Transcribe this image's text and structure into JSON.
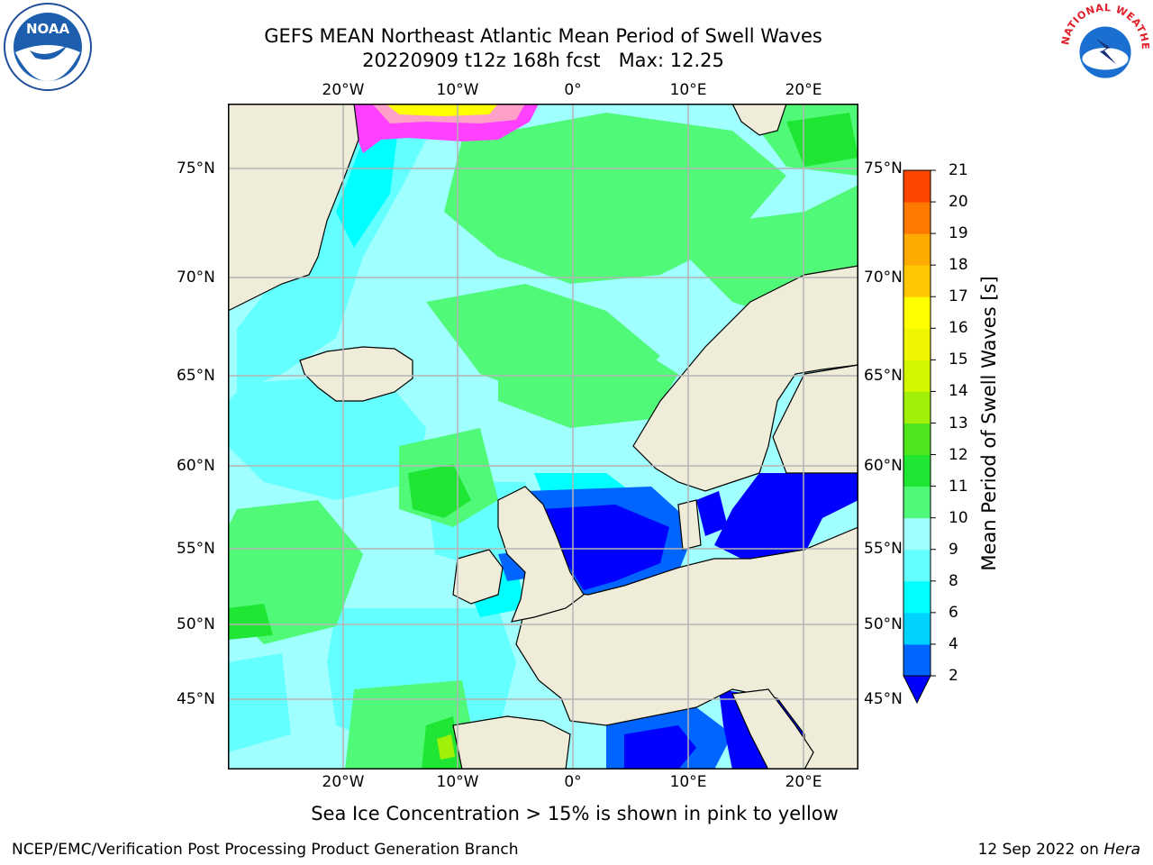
{
  "header": {
    "title_line1": "GEFS MEAN Northeast Atlantic Mean Period of Swell Waves",
    "title_line2": "20220909 t12z 168h fcst   Max: 12.25"
  },
  "logos": {
    "left": "noaa-logo",
    "left_text": "NOAA",
    "right": "national-weather-service-logo",
    "right_text": "NATIONAL WEATHER SERVICE"
  },
  "map": {
    "lon_ticks": [
      "20°W",
      "10°W",
      "0°",
      "10°E",
      "20°E"
    ],
    "lat_ticks": [
      "75°N",
      "70°N",
      "65°N",
      "60°N",
      "55°N",
      "50°N",
      "45°N"
    ],
    "colors": {
      "land": "#efedda",
      "coast": "#000000",
      "grid": "#b4b4b4",
      "ice_note_colors": [
        "#ff00ff",
        "#ffff00"
      ]
    }
  },
  "colorbar": {
    "label": "Mean Period of Swell Waves [s]",
    "ticks": [
      "2",
      "4",
      "6",
      "8",
      "9",
      "10",
      "11",
      "12",
      "13",
      "14",
      "15",
      "16",
      "17",
      "18",
      "19",
      "20",
      "21"
    ],
    "colors": [
      "#0064ff",
      "#00d2ff",
      "#00ffff",
      "#64ffff",
      "#a0ffff",
      "#50fa78",
      "#1ee632",
      "#50e61e",
      "#a0f00a",
      "#d2f500",
      "#f0f500",
      "#ffff00",
      "#ffc800",
      "#ffaa00",
      "#ff7800",
      "#ff4600",
      "#ff0000"
    ],
    "under_color": "#0000ff"
  },
  "notes": {
    "ice": "Sea Ice Concentration > 15% is shown in pink to yellow"
  },
  "footer": {
    "left": "NCEP/EMC/Verification Post Processing Product Generation Branch",
    "right_date": "12 Sep 2022 on ",
    "right_host": "Hera"
  }
}
